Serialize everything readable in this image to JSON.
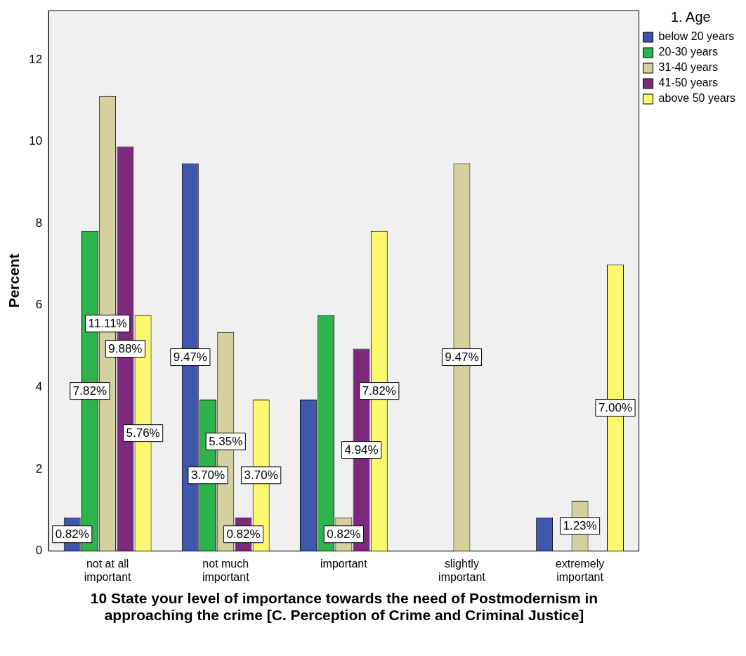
{
  "chart_data": {
    "type": "bar",
    "xlabel": "10 State your level of importance towards the need of Postmodernism in approaching the crime   [C. Perception of Crime and Criminal Justice]",
    "ylabel": "Percent",
    "legend_title": "1. Age",
    "legend": "top right",
    "grid": false,
    "categories": [
      "not at all important",
      "not much important",
      "important",
      "slightly important",
      "extremely important"
    ],
    "ylim": [
      0,
      13.2
    ],
    "yticks": [
      0,
      2,
      4,
      6,
      8,
      10,
      12
    ],
    "series": [
      {
        "name": "below 20 years",
        "color": "#3d57ad",
        "values": [
          0.82,
          9.47,
          3.7,
          null,
          0.82
        ],
        "value_labels": [
          "0.82%",
          "9.47%",
          null,
          null,
          null
        ]
      },
      {
        "name": "20-30 years",
        "color": "#2db34b",
        "values": [
          7.82,
          3.7,
          5.76,
          null,
          null
        ],
        "value_labels": [
          "7.82%",
          "3.70%",
          null,
          null,
          null
        ]
      },
      {
        "name": "31-40 years",
        "color": "#d6cf9e",
        "values": [
          11.11,
          5.35,
          0.82,
          9.47,
          1.23
        ],
        "value_labels": [
          "11.11%",
          "5.35%",
          "0.82%",
          "9.47%",
          "1.23%"
        ]
      },
      {
        "name": "41-50 years",
        "color": "#7d2a7e",
        "values": [
          9.88,
          0.82,
          4.94,
          null,
          null
        ],
        "value_labels": [
          "9.88%",
          "0.82%",
          "4.94%",
          null,
          null
        ]
      },
      {
        "name": "above 50 years",
        "color": "#fbf86e",
        "values": [
          5.76,
          3.7,
          7.82,
          null,
          7.0
        ],
        "value_labels": [
          "5.76%",
          "3.70%",
          "7.82%",
          null,
          "7.00%"
        ]
      }
    ]
  }
}
